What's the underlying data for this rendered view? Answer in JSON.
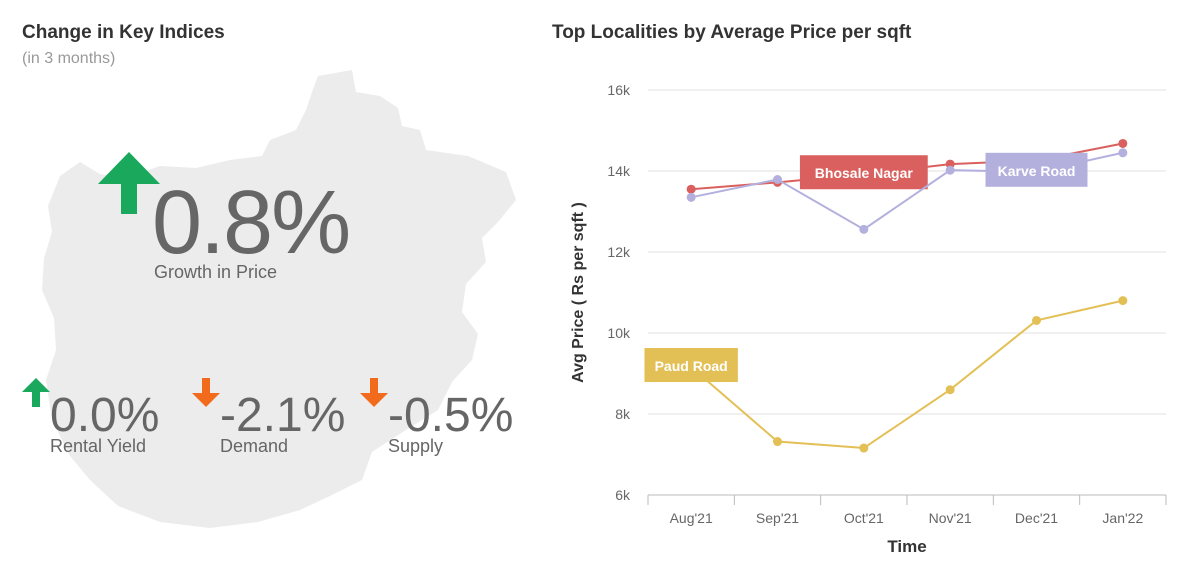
{
  "indices": {
    "title": "Change in Key Indices",
    "subtitle": "(in 3 months)",
    "main": {
      "value": "0.8%",
      "label": "Growth in Price",
      "direction": "up"
    },
    "metrics": [
      {
        "value": "0.0%",
        "label": "Rental Yield",
        "direction": "up"
      },
      {
        "value": "-2.1%",
        "label": "Demand",
        "direction": "down"
      },
      {
        "value": "-0.5%",
        "label": "Supply",
        "direction": "down"
      }
    ]
  },
  "colors": {
    "up": "#1aa85c",
    "down": "#f26a1b",
    "map": "#ececec"
  },
  "chart_data": {
    "type": "line",
    "title": "Top Localities by Average Price per sqft",
    "xlabel": "Time",
    "ylabel": "Avg Price ( Rs per sqft )",
    "categories": [
      "Aug'21",
      "Sep'21",
      "Oct'21",
      "Nov'21",
      "Dec'21",
      "Jan'22"
    ],
    "yticks": [
      "6k",
      "8k",
      "10k",
      "12k",
      "14k",
      "16k"
    ],
    "ylim": [
      6000,
      16000
    ],
    "grid": true,
    "series": [
      {
        "name": "Bhosale Nagar",
        "color": "#d9605e",
        "values": [
          13550,
          13720,
          13920,
          14170,
          14260,
          14680
        ],
        "label_index": 2
      },
      {
        "name": "Karve Road",
        "color": "#b3b0dd",
        "values": [
          13350,
          13790,
          12560,
          14020,
          13980,
          14450
        ],
        "label_index": 4
      },
      {
        "name": "Paud Road",
        "color": "#e3c056",
        "values": [
          9160,
          7320,
          7160,
          8600,
          10310,
          10800
        ],
        "label_index": 0
      }
    ]
  }
}
